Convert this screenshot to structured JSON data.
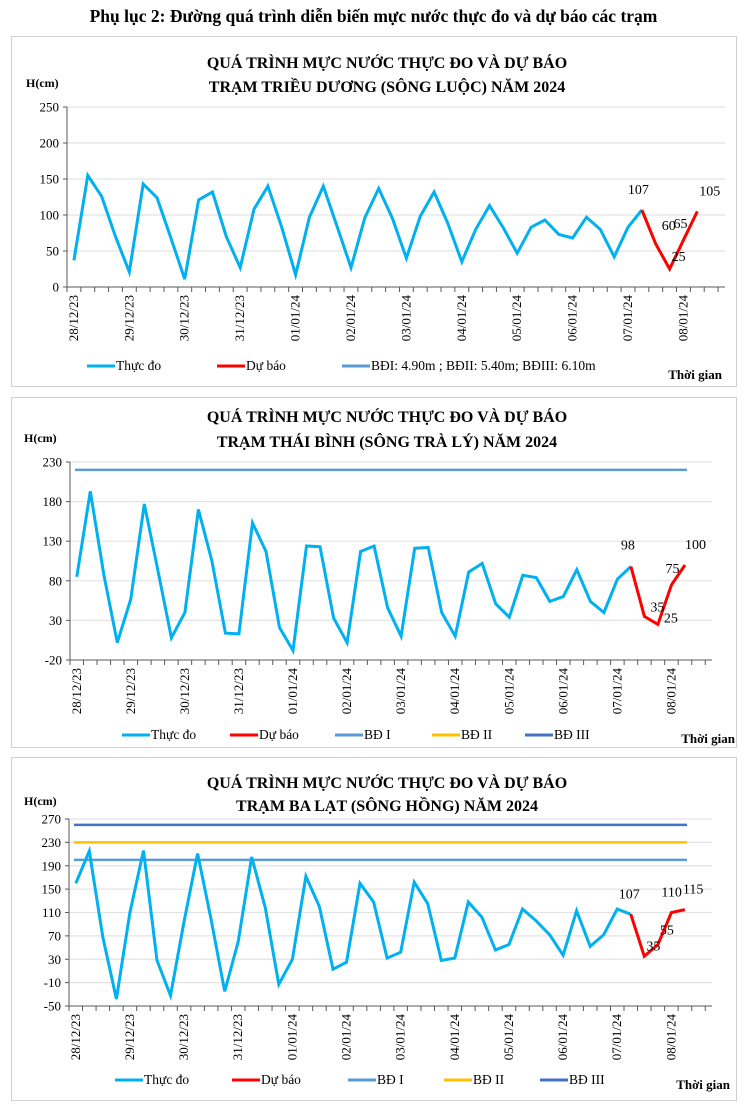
{
  "page_title": "Phụ lục 2: Đường quá trình diễn biến mực nước thực đo và dự báo các trạm",
  "colors": {
    "observed": "#00b0f0",
    "forecast": "#ff0000",
    "bd1": "#5b9bd5",
    "bd2": "#ffc000",
    "bd3": "#4472c4",
    "grid": "#e3e3e3",
    "axis": "#595959"
  },
  "chart_data": [
    {
      "type": "line",
      "title": [
        "QUÁ TRÌNH MỰC NƯỚC THỰC ĐO VÀ DỰ BÁO",
        "TRẠM TRIỀU DƯƠNG (SÔNG LUỘC) NĂM 2024"
      ],
      "ylabel": "H(cm)",
      "xlabel": "Thời gian",
      "ylim": [
        0,
        250
      ],
      "yticks": [
        0,
        50,
        100,
        150,
        200,
        250
      ],
      "grid": true,
      "x_categories": [
        "28/12/23",
        "29/12/23",
        "30/12/23",
        "31/12/23",
        "01/01/24",
        "02/01/24",
        "03/01/24",
        "04/01/24",
        "05/01/24",
        "06/01/24",
        "07/01/24",
        "08/01/24"
      ],
      "points_per_day": 4,
      "series": [
        {
          "name": "Thực đo",
          "color_key": "observed",
          "start_index": 0,
          "values": [
            37,
            155,
            126,
            70,
            21,
            143,
            124,
            68,
            11,
            121,
            132,
            70,
            27,
            108,
            140,
            83,
            17,
            97,
            140,
            84,
            27,
            96,
            137,
            95,
            40,
            98,
            132,
            88,
            35,
            80,
            113,
            82,
            47,
            83,
            93,
            73,
            68,
            97,
            80,
            42,
            83,
            107
          ]
        },
        {
          "name": "Dự báo",
          "color_key": "forecast",
          "start_index": 41,
          "values": [
            107,
            60,
            25,
            65,
            105
          ],
          "labels": [
            "107",
            "60",
            "25",
            "65",
            "105"
          ]
        }
      ],
      "reference_lines": [],
      "legend": [
        {
          "label": "Thực đo",
          "color_key": "observed"
        },
        {
          "label": "Dự báo",
          "color_key": "forecast"
        },
        {
          "label": "BĐI: 4.90m ; BĐII: 5.40m; BĐIII: 6.10m",
          "color_key": "bd1"
        }
      ],
      "legend_position": "bottom"
    },
    {
      "type": "line",
      "title": [
        "QUÁ TRÌNH MỰC NƯỚC THỰC ĐO VÀ DỰ BÁO",
        "TRẠM THÁI BÌNH (SÔNG TRÀ LÝ) NĂM 2024"
      ],
      "ylabel": "H(cm)",
      "xlabel": "Thời gian",
      "ylim": [
        -20,
        230
      ],
      "yticks": [
        -20,
        30,
        80,
        130,
        180,
        230
      ],
      "grid": true,
      "x_categories": [
        "28/12/23",
        "29/12/23",
        "30/12/23",
        "31/12/23",
        "01/01/24",
        "02/01/24",
        "03/01/24",
        "04/01/24",
        "05/01/24",
        "06/01/24",
        "07/01/24",
        "08/01/24"
      ],
      "points_per_day": 4,
      "series": [
        {
          "name": "Thực đo",
          "color_key": "observed",
          "start_index": 0,
          "values": [
            85,
            193,
            88,
            2,
            57,
            177,
            93,
            8,
            40,
            170,
            105,
            14,
            13,
            153,
            117,
            21,
            -8,
            124,
            123,
            33,
            2,
            117,
            124,
            46,
            10,
            121,
            122,
            40,
            10,
            91,
            102,
            51,
            34,
            87,
            84,
            54,
            60,
            94,
            54,
            40,
            82,
            98
          ]
        },
        {
          "name": "Dự báo",
          "color_key": "forecast",
          "start_index": 41,
          "values": [
            98,
            35,
            25,
            75,
            100
          ],
          "labels": [
            "98",
            "35",
            "25",
            "75",
            "100"
          ]
        }
      ],
      "reference_lines": [
        {
          "name": "BĐ I",
          "value": 220,
          "color_key": "bd1"
        }
      ],
      "legend": [
        {
          "label": "Thực đo",
          "color_key": "observed"
        },
        {
          "label": "Dự báo",
          "color_key": "forecast"
        },
        {
          "label": "BĐ I",
          "color_key": "bd1"
        },
        {
          "label": "BĐ II",
          "color_key": "bd2"
        },
        {
          "label": "BĐ III",
          "color_key": "bd3"
        }
      ],
      "legend_position": "bottom"
    },
    {
      "type": "line",
      "title": [
        "QUÁ TRÌNH MỰC NƯỚC THỰC ĐO VÀ DỰ BÁO",
        "TRẠM BA LẠT (SÔNG HỒNG) NĂM 2024"
      ],
      "ylabel": "H(cm)",
      "xlabel": "Thời gian",
      "ylim": [
        -50,
        270
      ],
      "yticks": [
        -50,
        -10,
        30,
        70,
        110,
        150,
        190,
        230,
        270
      ],
      "grid": true,
      "x_categories": [
        "28/12/23",
        "29/12/23",
        "30/12/23",
        "31/12/23",
        "01/01/24",
        "02/01/24",
        "03/01/24",
        "04/01/24",
        "05/01/24",
        "06/01/24",
        "07/01/24",
        "08/01/24"
      ],
      "points_per_day": 4,
      "series": [
        {
          "name": "Thực đo",
          "color_key": "observed",
          "start_index": 0,
          "values": [
            160,
            215,
            68,
            -38,
            110,
            216,
            28,
            -32,
            95,
            211,
            98,
            -25,
            60,
            205,
            118,
            -13,
            30,
            172,
            120,
            13,
            25,
            160,
            128,
            32,
            42,
            162,
            125,
            28,
            32,
            128,
            102,
            46,
            55,
            116,
            96,
            72,
            37,
            113,
            52,
            72,
            116,
            107
          ]
        },
        {
          "name": "Dự báo",
          "color_key": "forecast",
          "start_index": 41,
          "values": [
            107,
            35,
            55,
            110,
            115
          ],
          "labels": [
            "107",
            "35",
            "55",
            "110",
            "115"
          ]
        }
      ],
      "reference_lines": [
        {
          "name": "BĐ I",
          "value": 200,
          "color_key": "bd1"
        },
        {
          "name": "BĐ II",
          "value": 230,
          "color_key": "bd2"
        },
        {
          "name": "BĐ III",
          "value": 260,
          "color_key": "bd3"
        }
      ],
      "legend": [
        {
          "label": "Thực đo",
          "color_key": "observed"
        },
        {
          "label": "Dự báo",
          "color_key": "forecast"
        },
        {
          "label": "BĐ I",
          "color_key": "bd1"
        },
        {
          "label": "BĐ II",
          "color_key": "bd2"
        },
        {
          "label": "BĐ III",
          "color_key": "bd3"
        }
      ],
      "legend_position": "bottom"
    }
  ]
}
